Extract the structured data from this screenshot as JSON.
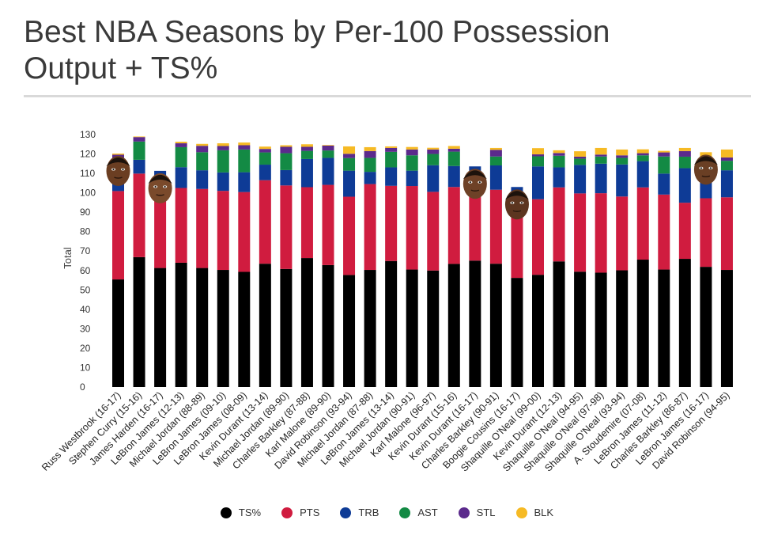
{
  "chart_data": {
    "type": "bar",
    "stacked": true,
    "title": "Best NBA Seasons by Per-100 Possession Output + TS%",
    "ylabel": "Total",
    "ylim": [
      0,
      130
    ],
    "yticks": [
      0,
      10,
      20,
      30,
      40,
      50,
      60,
      70,
      80,
      90,
      100,
      110,
      120,
      130
    ],
    "grid": false,
    "legend_position": "bottom",
    "categories": [
      "Russ Westbrook (16-17)",
      "Stephen Curry (15-16)",
      "James Harden (16-17)",
      "LeBron James (12-13)",
      "Michael Jordan (88-89)",
      "LeBron James (09-10)",
      "LeBron James (08-09)",
      "Kevin Durant (13-14)",
      "Michael Jordan (89-90)",
      "Charles Barkley (87-88)",
      "Karl Malone (89-90)",
      "David Robinson (93-94)",
      "Michael Jordan (87-88)",
      "LeBron James (13-14)",
      "Michael Jordan (90-91)",
      "Karl Malone (96-97)",
      "Kevin Durant (15-16)",
      "Kevin Durant (16-17)",
      "Charles Barkley (90-91)",
      "Boogie Cousins (16-17)",
      "Shaquille O'Neal (99-00)",
      "Kevin Durant (12-13)",
      "Shaquille O'Neal (94-95)",
      "Shaquille O'Neal (97-98)",
      "Shaquille O'Neal (93-94)",
      "A. Stoudemire (07-08)",
      "LeBron James (11-12)",
      "Charles Barkley (86-87)",
      "LeBron James (16-17)",
      "David Robinson (94-95)"
    ],
    "series": [
      {
        "name": "TS%",
        "color": "#000000",
        "values": [
          55.4,
          66.9,
          61.3,
          64.0,
          61.3,
          60.3,
          59.3,
          63.5,
          60.8,
          66.4,
          62.8,
          57.7,
          60.3,
          64.9,
          60.5,
          60.0,
          63.4,
          65.1,
          63.5,
          56.2,
          57.8,
          64.7,
          59.4,
          58.9,
          60.1,
          65.6,
          60.5,
          66.0,
          61.9,
          60.3
        ]
      },
      {
        "name": "PTS",
        "color": "#d01c3f",
        "values": [
          45.5,
          43.0,
          38.6,
          38.5,
          40.7,
          40.7,
          41.1,
          43.0,
          43.0,
          36.5,
          41.3,
          40.3,
          44.2,
          38.7,
          43.0,
          40.5,
          39.6,
          36.9,
          38.1,
          40.0,
          38.9,
          38.1,
          40.3,
          40.9,
          38.0,
          37.2,
          38.6,
          28.9,
          35.3,
          37.4
        ]
      },
      {
        "name": "TRB",
        "color": "#0e3b96",
        "values": [
          13.9,
          7.1,
          11.4,
          10.7,
          9.6,
          9.5,
          10.2,
          8.0,
          7.9,
          14.5,
          13.9,
          13.4,
          6.3,
          9.5,
          7.9,
          13.7,
          10.8,
          11.6,
          12.5,
          6.8,
          16.9,
          10.3,
          14.7,
          15.2,
          16.5,
          13.5,
          10.8,
          17.8,
          15.2,
          13.9
        ]
      },
      {
        "name": "AST",
        "color": "#138a44",
        "values": [
          3.2,
          9.4,
          0,
          10.3,
          9.3,
          11.4,
          11.7,
          6.3,
          8.7,
          4.2,
          3.8,
          6.5,
          7.2,
          8.0,
          7.9,
          5.8,
          7.4,
          0,
          4.6,
          0,
          5.2,
          6.0,
          3.2,
          3.7,
          3.4,
          3.0,
          8.8,
          5.9,
          3.1,
          4.9
        ]
      },
      {
        "name": "STL",
        "color": "#5b2a8c",
        "values": [
          1.6,
          2.3,
          0,
          2.0,
          3.3,
          2.2,
          2.2,
          1.8,
          3.3,
          2.1,
          2.5,
          2.2,
          3.5,
          2.0,
          3.0,
          2.3,
          1.5,
          0,
          3.4,
          0,
          1.0,
          1.4,
          1.0,
          1.0,
          1.3,
          1.1,
          2.1,
          2.9,
          2.2,
          1.7
        ]
      },
      {
        "name": "BLK",
        "color": "#f6ba24",
        "values": [
          0.6,
          0.3,
          0,
          0.8,
          1.0,
          1.4,
          1.4,
          1.2,
          0.8,
          1.3,
          0.3,
          3.8,
          2.0,
          0.8,
          1.3,
          0.9,
          1.4,
          0,
          1.0,
          0,
          3.2,
          1.4,
          2.8,
          3.4,
          3.0,
          2.0,
          0.8,
          1.6,
          3.2,
          4.1
        ]
      }
    ]
  },
  "legend": [
    {
      "label": "TS%",
      "color": "#000000"
    },
    {
      "label": "PTS",
      "color": "#d01c3f"
    },
    {
      "label": "TRB",
      "color": "#0e3b96"
    },
    {
      "label": "AST",
      "color": "#138a44"
    },
    {
      "label": "STL",
      "color": "#5b2a8c"
    },
    {
      "label": "BLK",
      "color": "#f6ba24"
    }
  ],
  "player_photos": [
    {
      "category": "Russ Westbrook (16-17)",
      "icon": "player-face-icon"
    },
    {
      "category": "James Harden (16-17)",
      "icon": "player-face-icon"
    },
    {
      "category": "Kevin Durant (16-17)",
      "icon": "player-face-icon"
    },
    {
      "category": "Boogie Cousins (16-17)",
      "icon": "player-face-icon"
    },
    {
      "category": "LeBron James (16-17)",
      "icon": "player-face-icon"
    }
  ]
}
